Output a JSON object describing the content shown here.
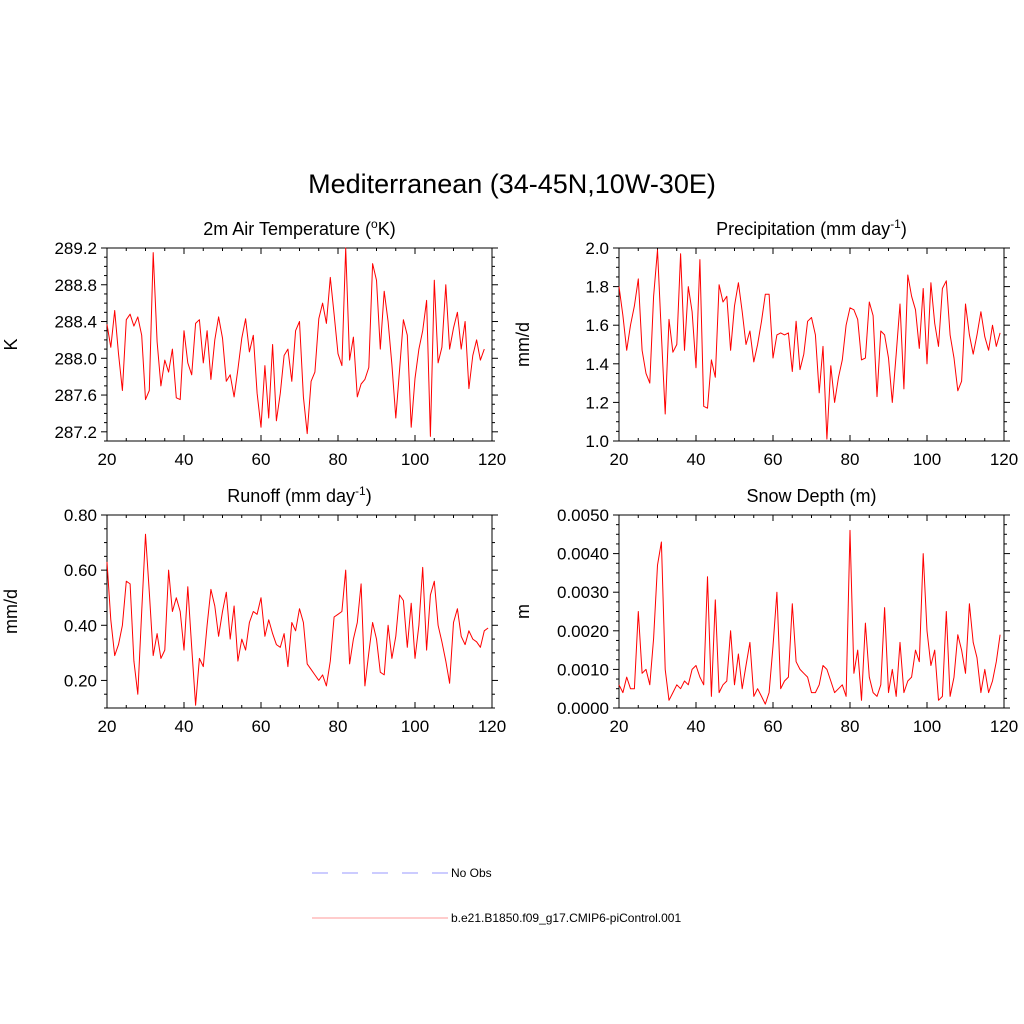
{
  "figure": {
    "title": "Mediterranean (34-45N,10W-30E)",
    "legend": [
      {
        "label": "No Obs",
        "color": "#9999ff",
        "dash": "dashed"
      },
      {
        "label": "b.e21.B1850.f09_g17.CMIP6-piControl.001",
        "color": "#ff9999",
        "dash": "solid"
      }
    ]
  },
  "series_color": "#ff0000",
  "chart_data": [
    {
      "id": "temperature",
      "type": "line",
      "title": "2m Air Temperature (",
      "title_sup": "o",
      "title_tail": "K)",
      "ylabel": "K",
      "xlim": [
        20,
        120
      ],
      "ylim": [
        287.1,
        289.2
      ],
      "xticks": [
        20,
        40,
        60,
        80,
        100,
        120
      ],
      "yticks": [
        "287.2",
        "287.6",
        "288.0",
        "288.4",
        "288.8",
        "289.2"
      ],
      "x_start": 20,
      "values": [
        288.37,
        288.12,
        288.52,
        288.05,
        287.65,
        288.42,
        288.48,
        288.35,
        288.45,
        288.25,
        287.55,
        287.65,
        289.15,
        288.18,
        287.7,
        287.98,
        287.85,
        288.1,
        287.57,
        287.55,
        288.3,
        287.95,
        287.82,
        288.38,
        288.42,
        287.95,
        288.3,
        287.77,
        288.2,
        288.45,
        288.22,
        287.75,
        287.82,
        287.58,
        287.88,
        288.22,
        288.43,
        288.07,
        288.25,
        287.62,
        287.25,
        287.92,
        287.35,
        288.15,
        287.32,
        287.62,
        288.03,
        288.1,
        287.75,
        288.3,
        288.4,
        287.58,
        287.18,
        287.75,
        287.85,
        288.43,
        288.6,
        288.38,
        288.88,
        288.48,
        288.05,
        287.92,
        289.2,
        287.98,
        288.23,
        287.58,
        287.72,
        287.77,
        287.9,
        289.03,
        288.85,
        288.1,
        288.73,
        288.4,
        287.93,
        287.35,
        287.88,
        288.42,
        288.25,
        287.25,
        287.78,
        288.1,
        288.3,
        288.63,
        287.15,
        288.85,
        287.95,
        288.12,
        288.8,
        288.1,
        288.33,
        288.5,
        288.1,
        288.4,
        287.67,
        288.03,
        288.2,
        287.98,
        288.1
      ]
    },
    {
      "id": "precipitation",
      "type": "line",
      "title": "Precipitation (mm day",
      "title_sup": "-1",
      "title_tail": ")",
      "ylabel": "mm/d",
      "xlim": [
        20,
        120
      ],
      "ylim": [
        1.0,
        2.0
      ],
      "xticks": [
        20,
        40,
        60,
        80,
        100,
        120
      ],
      "yticks": [
        "1.0",
        "1.2",
        "1.4",
        "1.6",
        "1.8",
        "2.0"
      ],
      "x_start": 20,
      "values": [
        1.8,
        1.65,
        1.47,
        1.6,
        1.7,
        1.84,
        1.47,
        1.35,
        1.3,
        1.75,
        1.99,
        1.55,
        1.14,
        1.63,
        1.46,
        1.5,
        1.97,
        1.47,
        1.8,
        1.67,
        1.38,
        1.94,
        1.18,
        1.17,
        1.42,
        1.33,
        1.81,
        1.72,
        1.75,
        1.47,
        1.7,
        1.82,
        1.67,
        1.5,
        1.57,
        1.41,
        1.5,
        1.62,
        1.76,
        1.76,
        1.43,
        1.55,
        1.56,
        1.55,
        1.56,
        1.36,
        1.62,
        1.37,
        1.45,
        1.62,
        1.64,
        1.55,
        1.25,
        1.49,
        1.01,
        1.39,
        1.2,
        1.33,
        1.42,
        1.6,
        1.69,
        1.68,
        1.63,
        1.42,
        1.43,
        1.72,
        1.65,
        1.23,
        1.57,
        1.55,
        1.43,
        1.2,
        1.45,
        1.71,
        1.27,
        1.86,
        1.75,
        1.68,
        1.48,
        1.79,
        1.4,
        1.82,
        1.61,
        1.49,
        1.79,
        1.83,
        1.55,
        1.43,
        1.26,
        1.31,
        1.71,
        1.55,
        1.45,
        1.55,
        1.67,
        1.54,
        1.47,
        1.6,
        1.49,
        1.56
      ]
    },
    {
      "id": "runoff",
      "type": "line",
      "title": "Runoff (mm day",
      "title_sup": "-1",
      "title_tail": ")",
      "ylabel": "mm/d",
      "xlim": [
        20,
        120
      ],
      "ylim": [
        0.1,
        0.8
      ],
      "xticks": [
        20,
        40,
        60,
        80,
        100,
        120
      ],
      "yticks": [
        "0.20",
        "0.40",
        "0.60",
        "0.80"
      ],
      "x_start": 20,
      "values": [
        0.63,
        0.42,
        0.29,
        0.33,
        0.4,
        0.56,
        0.55,
        0.27,
        0.15,
        0.45,
        0.73,
        0.52,
        0.29,
        0.37,
        0.28,
        0.31,
        0.6,
        0.45,
        0.5,
        0.45,
        0.31,
        0.54,
        0.32,
        0.11,
        0.28,
        0.25,
        0.4,
        0.53,
        0.47,
        0.36,
        0.45,
        0.52,
        0.35,
        0.47,
        0.27,
        0.35,
        0.31,
        0.41,
        0.45,
        0.44,
        0.5,
        0.36,
        0.42,
        0.37,
        0.33,
        0.32,
        0.37,
        0.25,
        0.41,
        0.38,
        0.46,
        0.41,
        0.26,
        0.24,
        0.22,
        0.2,
        0.22,
        0.18,
        0.27,
        0.43,
        0.44,
        0.45,
        0.6,
        0.26,
        0.35,
        0.41,
        0.55,
        0.18,
        0.3,
        0.41,
        0.35,
        0.23,
        0.22,
        0.4,
        0.28,
        0.36,
        0.51,
        0.49,
        0.32,
        0.48,
        0.28,
        0.4,
        0.61,
        0.31,
        0.51,
        0.56,
        0.4,
        0.34,
        0.27,
        0.19,
        0.41,
        0.46,
        0.36,
        0.33,
        0.38,
        0.35,
        0.34,
        0.32,
        0.38,
        0.39
      ]
    },
    {
      "id": "snow_depth",
      "type": "line",
      "title": "Snow Depth (m)",
      "title_sup": "",
      "title_tail": "",
      "ylabel": "m",
      "xlim": [
        20,
        120
      ],
      "ylim": [
        0.0,
        0.005
      ],
      "xticks": [
        20,
        40,
        60,
        80,
        100,
        120
      ],
      "yticks": [
        "0.0000",
        "0.0010",
        "0.0020",
        "0.0030",
        "0.0040",
        "0.0050"
      ],
      "x_start": 20,
      "values": [
        0.0006,
        0.0004,
        0.0008,
        0.0005,
        0.0005,
        0.0025,
        0.0009,
        0.001,
        0.0006,
        0.0018,
        0.0037,
        0.0043,
        0.001,
        0.0002,
        0.0004,
        0.0006,
        0.0005,
        0.0007,
        0.0006,
        0.001,
        0.0011,
        0.0008,
        0.0006,
        0.0034,
        0.0003,
        0.0028,
        0.0004,
        0.0006,
        0.0007,
        0.002,
        0.0006,
        0.0014,
        0.0005,
        0.0011,
        0.0017,
        0.0003,
        0.0005,
        0.0003,
        0.0001,
        0.0004,
        0.0016,
        0.003,
        0.0005,
        0.0007,
        0.0008,
        0.0027,
        0.0012,
        0.001,
        0.0009,
        0.0008,
        0.0004,
        0.0004,
        0.0006,
        0.0011,
        0.001,
        0.0007,
        0.0004,
        0.0005,
        0.0006,
        0.0003,
        0.0046,
        0.0009,
        0.0015,
        0.0002,
        0.0022,
        0.0008,
        0.0004,
        0.0003,
        0.0006,
        0.0026,
        0.0004,
        0.001,
        0.0003,
        0.0017,
        0.0004,
        0.0007,
        0.0008,
        0.0015,
        0.0012,
        0.004,
        0.002,
        0.0011,
        0.0015,
        0.0002,
        0.0003,
        0.0025,
        0.0003,
        0.0008,
        0.0019,
        0.0015,
        0.0009,
        0.0027,
        0.0017,
        0.0013,
        0.0004,
        0.001,
        0.0004,
        0.0007,
        0.0012,
        0.0019
      ]
    }
  ]
}
